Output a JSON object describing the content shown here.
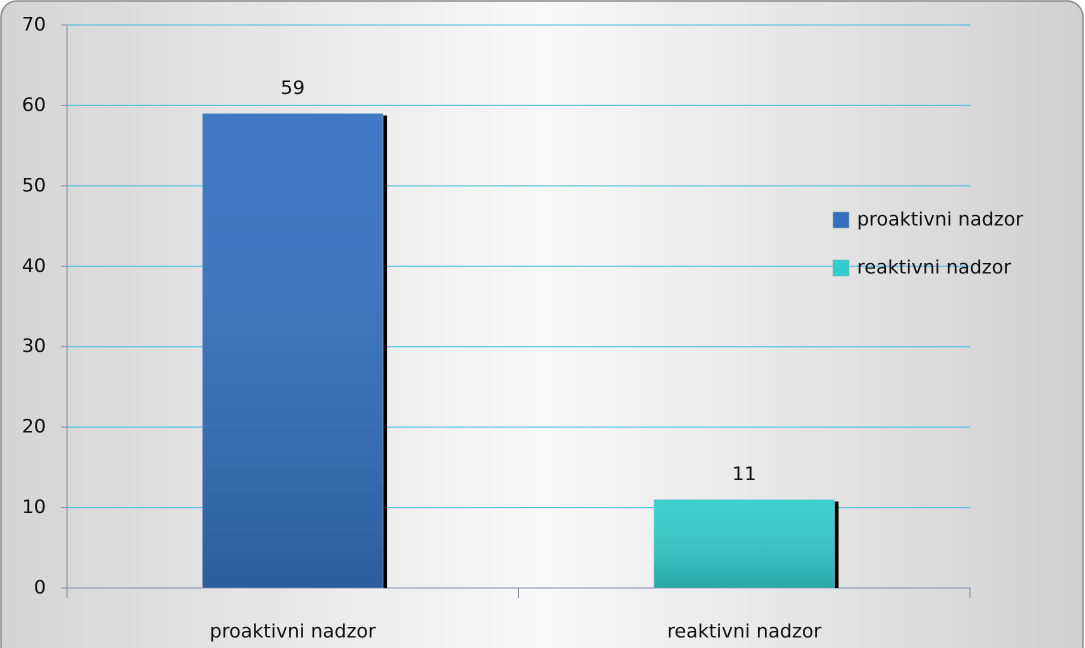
{
  "chart_data": {
    "type": "bar",
    "categories": [
      "proaktivni nadzor",
      "reaktivni nadzor"
    ],
    "values": [
      59,
      11
    ],
    "colors": [
      "#3571c0",
      "#33cccc"
    ],
    "ylim": [
      0,
      70
    ],
    "yticks": [
      0,
      10,
      20,
      30,
      40,
      50,
      60,
      70
    ],
    "grid": true,
    "legend": "right"
  }
}
